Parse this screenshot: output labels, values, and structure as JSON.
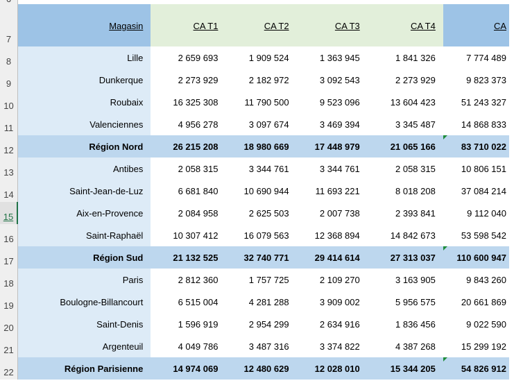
{
  "sheet": {
    "header": {
      "row_number": "7",
      "magasin": "Magasin",
      "t1": "CA T1",
      "t2": "CA T2",
      "t3": "CA T3",
      "t4": "CA T4",
      "ca": "CA"
    },
    "top_row_number": "6",
    "selected_row": "15",
    "rows": [
      {
        "n": "8",
        "name": "Lille",
        "t1": "2 659 693",
        "t2": "1 909 524",
        "t3": "1 363 945",
        "t4": "1 841 326",
        "ca": "7 774 489"
      },
      {
        "n": "9",
        "name": "Dunkerque",
        "t1": "2 273 929",
        "t2": "2 182 972",
        "t3": "3 092 543",
        "t4": "2 273 929",
        "ca": "9 823 373"
      },
      {
        "n": "10",
        "name": "Roubaix",
        "t1": "16 325 308",
        "t2": "11 790 500",
        "t3": "9 523 096",
        "t4": "13 604 423",
        "ca": "51 243 327"
      },
      {
        "n": "11",
        "name": "Valenciennes",
        "t1": "4 956 278",
        "t2": "3 097 674",
        "t3": "3 469 394",
        "t4": "3 345 487",
        "ca": "14 868 833"
      },
      {
        "n": "12",
        "name": "Région Nord",
        "t1": "26 215 208",
        "t2": "18 980 669",
        "t3": "17 448 979",
        "t4": "21 065 166",
        "ca": "83 710 022"
      },
      {
        "n": "13",
        "name": "Antibes",
        "t1": "2 058 315",
        "t2": "3 344 761",
        "t3": "3 344 761",
        "t4": "2 058 315",
        "ca": "10 806 151"
      },
      {
        "n": "14",
        "name": "Saint-Jean-de-Luz",
        "t1": "6 681 840",
        "t2": "10 690 944",
        "t3": "11 693 221",
        "t4": "8 018 208",
        "ca": "37 084 214"
      },
      {
        "n": "15",
        "name": "Aix-en-Provence",
        "t1": "2 084 958",
        "t2": "2 625 503",
        "t3": "2 007 738",
        "t4": "2 393 841",
        "ca": "9 112 040"
      },
      {
        "n": "16",
        "name": "Saint-Raphaël",
        "t1": "10 307 412",
        "t2": "16 079 563",
        "t3": "12 368 894",
        "t4": "14 842 673",
        "ca": "53 598 542"
      },
      {
        "n": "17",
        "name": "Région Sud",
        "t1": "21 132 525",
        "t2": "32 740 771",
        "t3": "29 414 614",
        "t4": "27 313 037",
        "ca": "110 600 947"
      },
      {
        "n": "18",
        "name": "Paris",
        "t1": "2 812 360",
        "t2": "1 757 725",
        "t3": "2 109 270",
        "t4": "3 163 905",
        "ca": "9 843 260"
      },
      {
        "n": "19",
        "name": "Boulogne-Billancourt",
        "t1": "6 515 004",
        "t2": "4 281 288",
        "t3": "3 909 002",
        "t4": "5 956 575",
        "ca": "20 661 869"
      },
      {
        "n": "20",
        "name": "Saint-Denis",
        "t1": "1 596 919",
        "t2": "2 954 299",
        "t3": "2 634 916",
        "t4": "1 836 456",
        "ca": "9 022 590"
      },
      {
        "n": "21",
        "name": "Argenteuil",
        "t1": "4 049 786",
        "t2": "3 487 316",
        "t3": "3 374 822",
        "t4": "4 387 268",
        "ca": "15 299 192"
      },
      {
        "n": "22",
        "name": "Région Parisienne",
        "t1": "14 974 069",
        "t2": "12 480 629",
        "t3": "12 028 010",
        "t4": "15 344 205",
        "ca": "54 826 912"
      }
    ]
  }
}
